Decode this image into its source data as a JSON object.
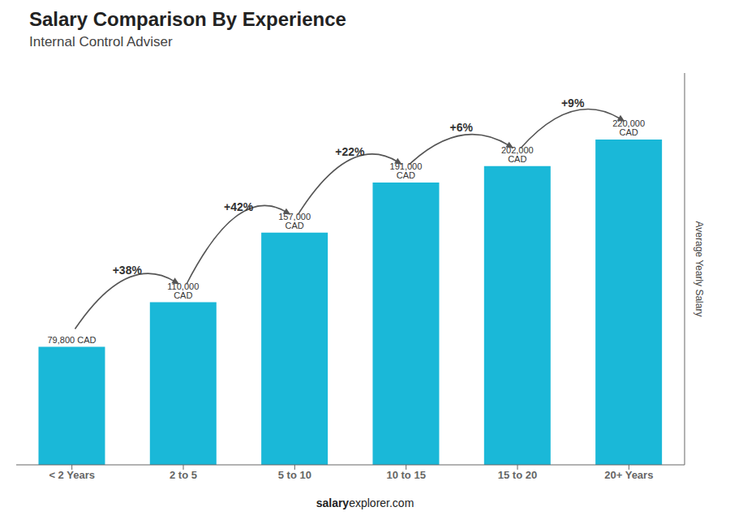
{
  "chart_data": {
    "type": "bar",
    "title": "Salary Comparison By Experience",
    "subtitle": "Internal Control Adviser",
    "categories": [
      "< 2 Years",
      "2 to 5",
      "5 to 10",
      "10 to 15",
      "15 to 20",
      "20+ Years"
    ],
    "values": [
      79800,
      110000,
      157000,
      191000,
      202000,
      220000
    ],
    "value_labels": [
      "79,800 CAD",
      "110,000 CAD",
      "157,000 CAD",
      "191,000 CAD",
      "202,000 CAD",
      "220,000 CAD"
    ],
    "data_labels": true,
    "color": "#1ab8d8",
    "ylabel": "Average Yearly Salary",
    "ylim": [
      0,
      265000
    ],
    "annotations": [
      "+38%",
      "+42%",
      "+22%",
      "+6%",
      "+9%"
    ],
    "footer": [
      "salary",
      "explorer.com"
    ],
    "tick_labels": "x",
    "grid": false
  }
}
